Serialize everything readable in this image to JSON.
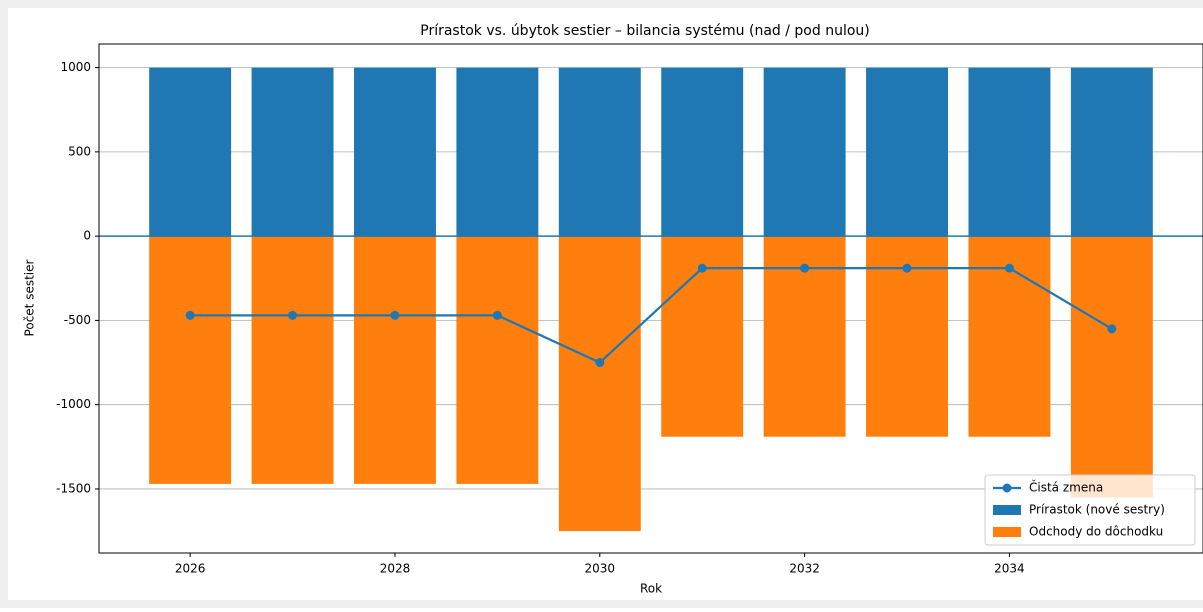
{
  "chart_data": {
    "type": "bar",
    "title": "Prírastok vs. úbytok sestier – bilancia systému (nad / pod nulou)",
    "x_label": "Rok",
    "y_label": "Počet sestier",
    "x": [
      2026,
      2027,
      2028,
      2029,
      2030,
      2031,
      2032,
      2033,
      2034,
      2035
    ],
    "series": [
      {
        "name": "Čistá zmena",
        "type": "line",
        "color": "#1f77b4",
        "values": [
          -470,
          -470,
          -470,
          -470,
          -750,
          -190,
          -190,
          -190,
          -190,
          -550
        ]
      },
      {
        "name": "Prírastok (nové sestry)",
        "type": "bar",
        "color": "#1f77b4",
        "values": [
          1000,
          1000,
          1000,
          1000,
          1000,
          1000,
          1000,
          1000,
          1000,
          1000
        ]
      },
      {
        "name": "Odchody do dôchodku",
        "type": "bar",
        "color": "#ff7f0e",
        "values": [
          -1470,
          -1470,
          -1470,
          -1470,
          -1750,
          -1190,
          -1190,
          -1190,
          -1190,
          -1550
        ]
      }
    ],
    "xlim": [
      2025.11,
      2035.89
    ],
    "xticks": [
      2026,
      2028,
      2030,
      2032,
      2034
    ],
    "ylim": [
      -1880,
      1140
    ],
    "yticks": [
      -1500,
      -1000,
      -500,
      0,
      500,
      1000
    ],
    "grid": "y",
    "legend": "lower right"
  }
}
